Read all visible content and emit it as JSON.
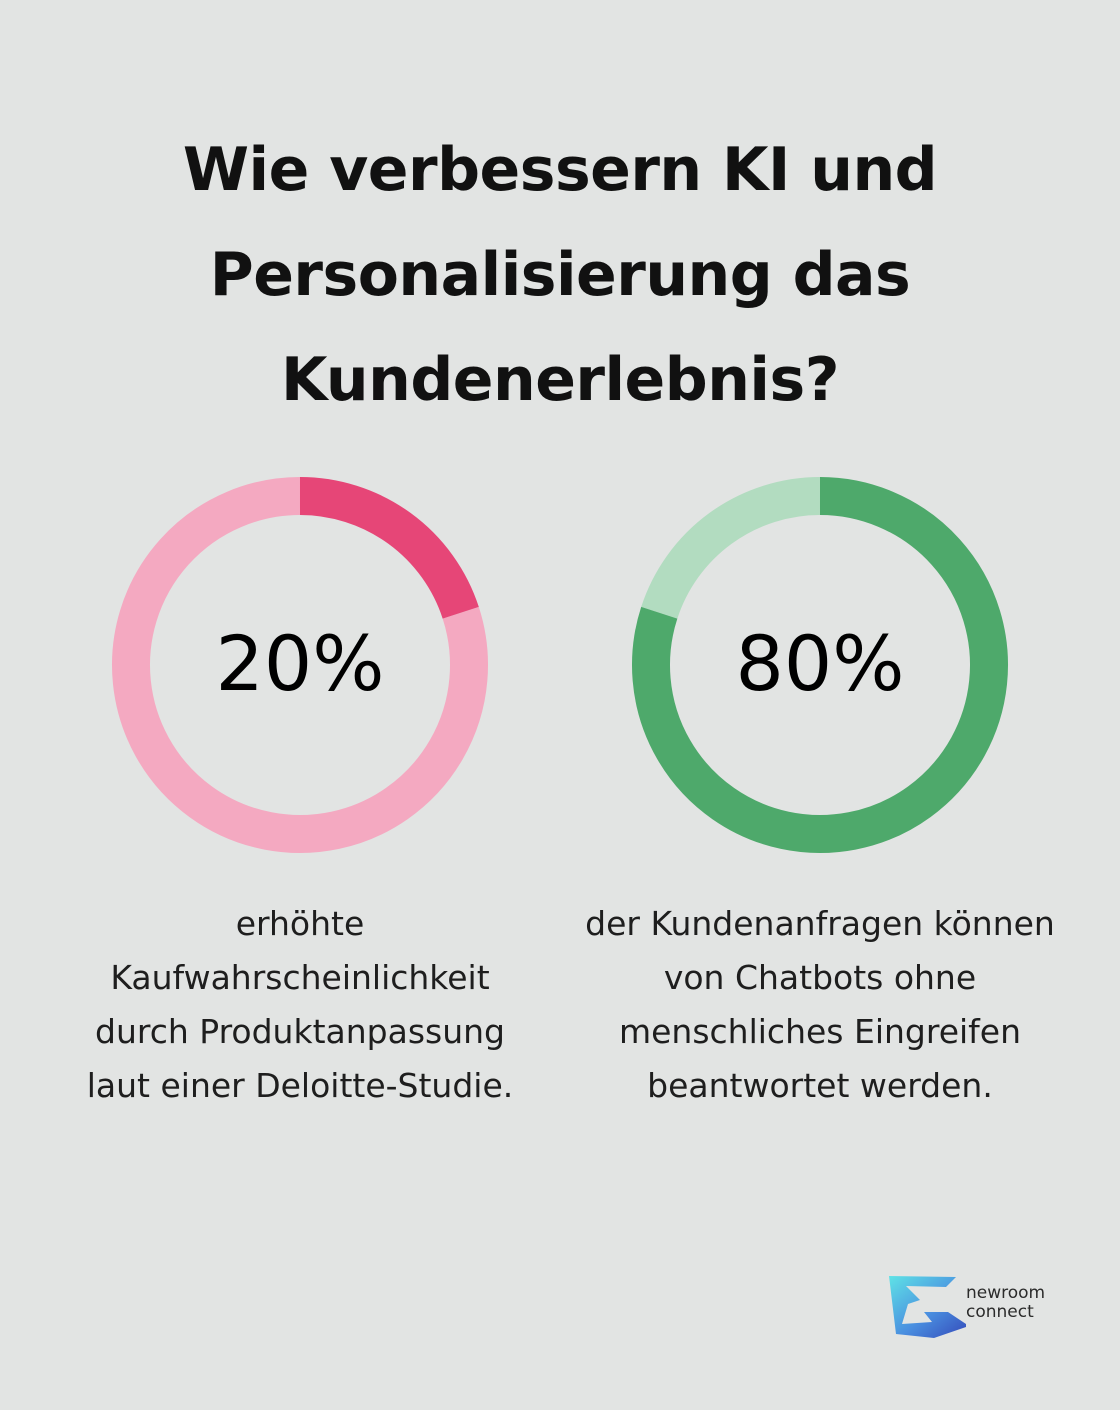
{
  "title": "Wie verbessern KI und Personalisierung das Kundenerlebnis?",
  "chart_data": [
    {
      "type": "pie",
      "variant": "donut",
      "value": 20,
      "max": 100,
      "label": "20%",
      "caption": "erhöhte Kaufwahrscheinlichkeit durch Produktanpassung laut einer Deloitte-Studie.",
      "colors": {
        "highlight": "#e64677",
        "remainder": "#f4a9c1"
      }
    },
    {
      "type": "pie",
      "variant": "donut",
      "value": 80,
      "max": 100,
      "label": "80%",
      "caption": "der Kundenanfragen können von Chatbots ohne menschliches Eingreifen beantwortet werden.",
      "colors": {
        "highlight": "#4ea96b",
        "remainder": "#b2dcc0"
      }
    }
  ],
  "logo": {
    "line1": "newroom",
    "line2": "connect",
    "icon": "newroom-connect-logo-icon"
  }
}
